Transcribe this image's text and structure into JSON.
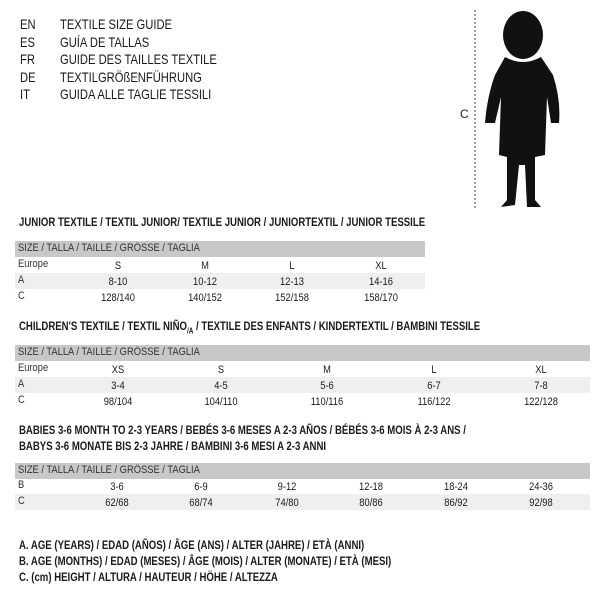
{
  "languages": [
    {
      "code": "EN",
      "text": "TEXTILE SIZE GUIDE"
    },
    {
      "code": "ES",
      "text": "GUÍA DE TALLAS"
    },
    {
      "code": "FR",
      "text": "GUIDE DES TAILLES TEXTILE"
    },
    {
      "code": "DE",
      "text": "TEXTILGRÖßENFÜHRUNG"
    },
    {
      "code": "IT",
      "text": "GUIDA ALLE TAGLIE TESSILI"
    }
  ],
  "figure": {
    "measure_label": "C"
  },
  "junior": {
    "title": "JUNIOR TEXTILE / TEXTIL JUNIOR/ TEXTILE JUNIOR / JUNIORTEXTIL / JUNIOR TESSILE",
    "header": "SIZE / TALLA / TAILLE / GRÖSSE / TAGLIA",
    "rows": [
      {
        "label": "Europe",
        "values": [
          "S",
          "M",
          "L",
          "XL"
        ]
      },
      {
        "label": "A",
        "values": [
          "8-10",
          "10-12",
          "12-13",
          "14-16"
        ]
      },
      {
        "label": "C",
        "values": [
          "128/140",
          "140/152",
          "152/158",
          "158/170"
        ]
      }
    ]
  },
  "children": {
    "title_main": "CHILDREN'S TEXTILE / TEXTIL NIÑO",
    "title_sub": "/A",
    "title_rest": " / TEXTILE DES ENFANTS / KINDERTEXTIL / BAMBINI TESSILE",
    "header": "SIZE / TALLA / TAILLE / GRÖSSE / TAGLIA",
    "rows": [
      {
        "label": "Europe",
        "values": [
          "XS",
          "S",
          "M",
          "L",
          "XL"
        ]
      },
      {
        "label": "A",
        "values": [
          "3-4",
          "4-5",
          "5-6",
          "6-7",
          "7-8"
        ]
      },
      {
        "label": "C",
        "values": [
          "98/104",
          "104/110",
          "110/116",
          "116/122",
          "122/128"
        ]
      }
    ]
  },
  "babies": {
    "title_line1": "BABIES 3-6 MONTH TO 2-3 YEARS / BEBÉS 3-6 MESES A 2-3 AÑOS / BÉBÉS 3-6 MOIS À 2-3 ANS /",
    "title_line2": "BABYS 3-6 MONATE BIS 2-3 JAHRE / BAMBINI 3-6 MESI A 2-3 ANNI",
    "header": "SIZE / TALLA / TAILLE / GRÖSSE / TAGLIA",
    "rows": [
      {
        "label": "B",
        "values": [
          "3-6",
          "6-9",
          "9-12",
          "12-18",
          "18-24",
          "24-36"
        ]
      },
      {
        "label": "C",
        "values": [
          "62/68",
          "68/74",
          "74/80",
          "80/86",
          "86/92",
          "92/98"
        ]
      }
    ]
  },
  "legend": [
    "A. AGE (YEARS) / EDAD (AÑOS) / ÂGE (ANS) / ALTER (JAHRE) / ETÀ (ANNI)",
    "B. AGE (MONTHS) / EDAD (MESES) / ÂGE (MOIS) / ALTER (MONATE) / ETÀ (MESI)",
    "C. (cm) HEIGHT / ALTURA / HAUTEUR / HÖHE / ALTEZZA"
  ],
  "colors": {
    "header_band": "#c8c8c8",
    "stripe": "#efefef",
    "text": "#1a1a1a"
  }
}
